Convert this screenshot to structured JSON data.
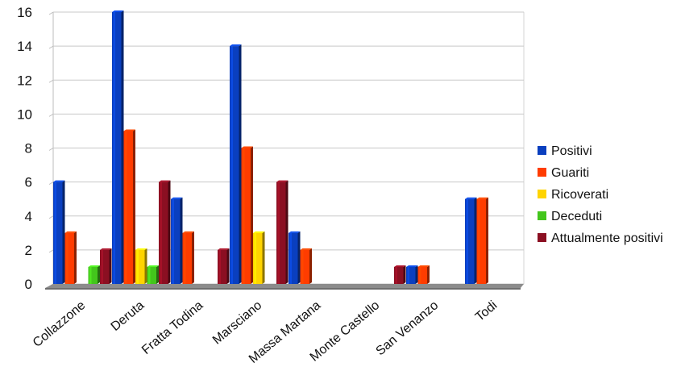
{
  "chart_data": {
    "type": "bar",
    "title": "",
    "xlabel": "",
    "ylabel": "",
    "ylim": [
      0,
      16
    ],
    "yticks": [
      0,
      2,
      4,
      6,
      8,
      10,
      12,
      14,
      16
    ],
    "grid": true,
    "legend_position": "right",
    "categories": [
      "Collazzone",
      "Deruta",
      "Fratta Todina",
      "Marsciano",
      "Massa Martana",
      "Monte Castello",
      "San Venanzo",
      "Todi"
    ],
    "series": [
      {
        "name": "Positivi",
        "color": "#0a3fbf",
        "values": [
          6,
          16,
          5,
          14,
          3,
          0,
          1,
          5
        ]
      },
      {
        "name": "Guariti",
        "color": "#ff3c00",
        "values": [
          3,
          9,
          3,
          8,
          2,
          0,
          1,
          5
        ]
      },
      {
        "name": "Ricoverati",
        "color": "#ffd400",
        "values": [
          0,
          2,
          0,
          3,
          0,
          0,
          0,
          0
        ]
      },
      {
        "name": "Deceduti",
        "color": "#43c61c",
        "values": [
          1,
          1,
          0,
          0,
          0,
          0,
          0,
          0
        ]
      },
      {
        "name": "Attualmente positivi",
        "color": "#8b0f22",
        "values": [
          2,
          6,
          2,
          6,
          0,
          1,
          0,
          0
        ]
      }
    ]
  }
}
